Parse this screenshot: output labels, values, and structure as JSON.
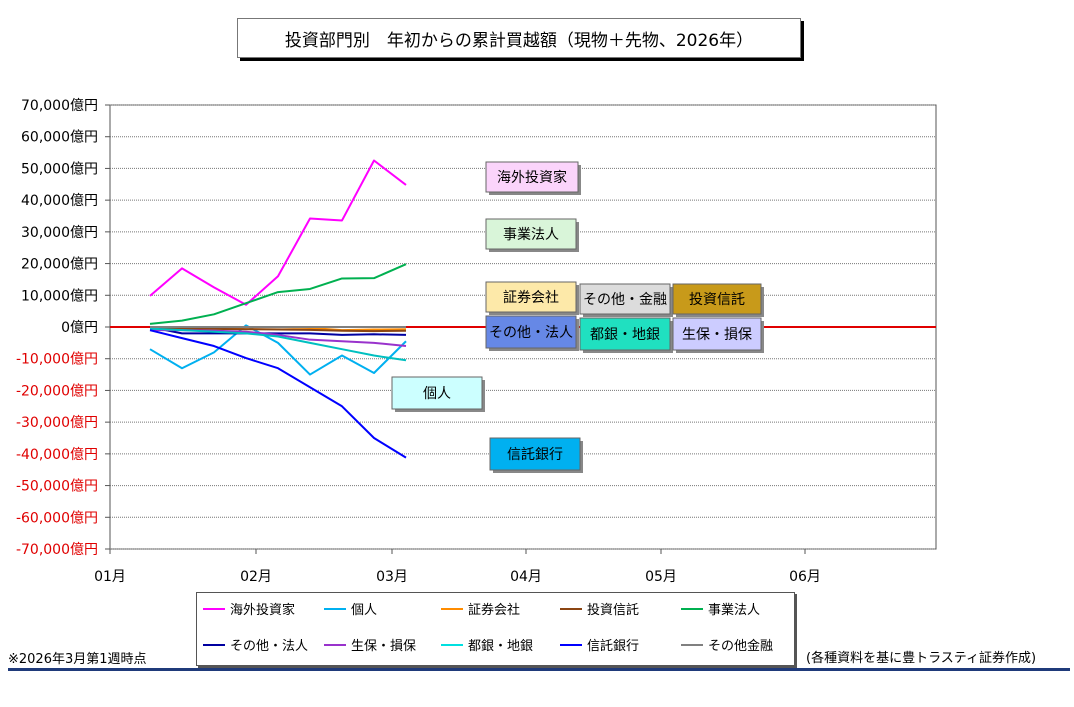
{
  "title": "投資部門別　年初からの累計買越額（現物＋先物、2026年）",
  "footnote": "※2026年3月第1週時点",
  "source": "(各種資料を基に豊トラスティ証券作成)",
  "colors": {
    "zero_line": "#e00000",
    "negative_tick": "#e00000",
    "positive_tick": "#000000"
  },
  "chart_data": {
    "type": "line",
    "title": "投資部門別　年初からの累計買越額（現物＋先物、2026年）",
    "y_unit": "億円",
    "ylim": [
      -70000,
      70000
    ],
    "y_ticks": [
      70000,
      60000,
      50000,
      40000,
      30000,
      20000,
      10000,
      0,
      -10000,
      -20000,
      -30000,
      -40000,
      -50000,
      -60000,
      -70000
    ],
    "y_tick_labels": [
      "70,000億円",
      "60,000億円",
      "50,000億円",
      "40,000億円",
      "30,000億円",
      "20,000億円",
      "10,000億円",
      "0億円",
      "-10,000億円",
      "-20,000億円",
      "-30,000億円",
      "-40,000億円",
      "-50,000億円",
      "-60,000億円",
      "-70,000億円"
    ],
    "x_tick_labels": [
      "01月",
      "02月",
      "03月",
      "04月",
      "05月",
      "06月"
    ],
    "x_weeks": [
      1,
      2,
      3,
      4,
      5,
      6,
      7,
      8,
      9
    ],
    "grid": true,
    "legend_position": "bottom",
    "series": [
      {
        "name": "海外投資家",
        "color": "#ff00ff",
        "values": [
          9800,
          18500,
          12500,
          7000,
          16000,
          34200,
          33600,
          52500,
          44800
        ]
      },
      {
        "name": "個人",
        "color": "#00b0f0",
        "values": [
          -7000,
          -13000,
          -8000,
          500,
          -5000,
          -15000,
          -9000,
          -14500,
          -4500
        ]
      },
      {
        "name": "証券会社",
        "color": "#ff8c00",
        "values": [
          0,
          0,
          -300,
          -100,
          0,
          -300,
          -1000,
          -800,
          -700
        ]
      },
      {
        "name": "投資信託",
        "color": "#8b4513",
        "values": [
          -300,
          -500,
          -600,
          -700,
          -800,
          -900,
          -1200,
          -1300,
          -1200
        ]
      },
      {
        "name": "事業法人",
        "color": "#00b050",
        "values": [
          1000,
          2000,
          4000,
          7500,
          11000,
          12000,
          15300,
          15400,
          19800
        ]
      },
      {
        "name": "その他・法人",
        "color": "#0000a0",
        "values": [
          0,
          -2000,
          -2000,
          -2000,
          -2000,
          -2000,
          -2500,
          -2300,
          -2500
        ]
      },
      {
        "name": "生保・損保",
        "color": "#9932cc",
        "values": [
          -1000,
          -1000,
          -1200,
          -1500,
          -2500,
          -4000,
          -4500,
          -5000,
          -6000
        ]
      },
      {
        "name": "都銀・地銀",
        "color": "#00c0c0",
        "values": [
          -500,
          -1000,
          -1500,
          -2000,
          -3000,
          -5000,
          -7000,
          -9000,
          -10500
        ]
      },
      {
        "name": "信託銀行",
        "color": "#0000ff",
        "values": [
          -1000,
          -3500,
          -6000,
          -9800,
          -13000,
          -19000,
          -25000,
          -35000,
          -41200
        ]
      },
      {
        "name": "その他金融",
        "color": "#808080",
        "values": [
          0,
          0,
          0,
          0,
          0,
          0,
          0,
          0,
          0
        ]
      }
    ],
    "annotations": [
      {
        "label": "海外投資家",
        "fill": "#fbd4fb"
      },
      {
        "label": "事業法人",
        "fill": "#d9f5d9"
      },
      {
        "label": "証券会社",
        "fill": "#fde9a9"
      },
      {
        "label": "その他・金融",
        "fill": "#dcdcdc"
      },
      {
        "label": "投資信託",
        "fill": "#c89a1a"
      },
      {
        "label": "その他・法人",
        "fill": "#6688e6"
      },
      {
        "label": "都銀・地銀",
        "fill": "#20e0c0"
      },
      {
        "label": "生保・損保",
        "fill": "#ccccff"
      },
      {
        "label": "個人",
        "fill": "#ccffff"
      },
      {
        "label": "信託銀行",
        "fill": "#00b0f0"
      }
    ]
  },
  "legend": [
    {
      "label": "海外投資家",
      "color": "#ff00ff"
    },
    {
      "label": "個人",
      "color": "#00b0f0"
    },
    {
      "label": "証券会社",
      "color": "#ff8c00"
    },
    {
      "label": "投資信託",
      "color": "#8b4513"
    },
    {
      "label": "事業法人",
      "color": "#00b050"
    },
    {
      "label": "その他・法人",
      "color": "#0000a0"
    },
    {
      "label": "生保・損保",
      "color": "#9932cc"
    },
    {
      "label": "都銀・地銀",
      "color": "#00e0e0"
    },
    {
      "label": "信託銀行",
      "color": "#0000ff"
    },
    {
      "label": "その他金融",
      "color": "#808080"
    }
  ]
}
